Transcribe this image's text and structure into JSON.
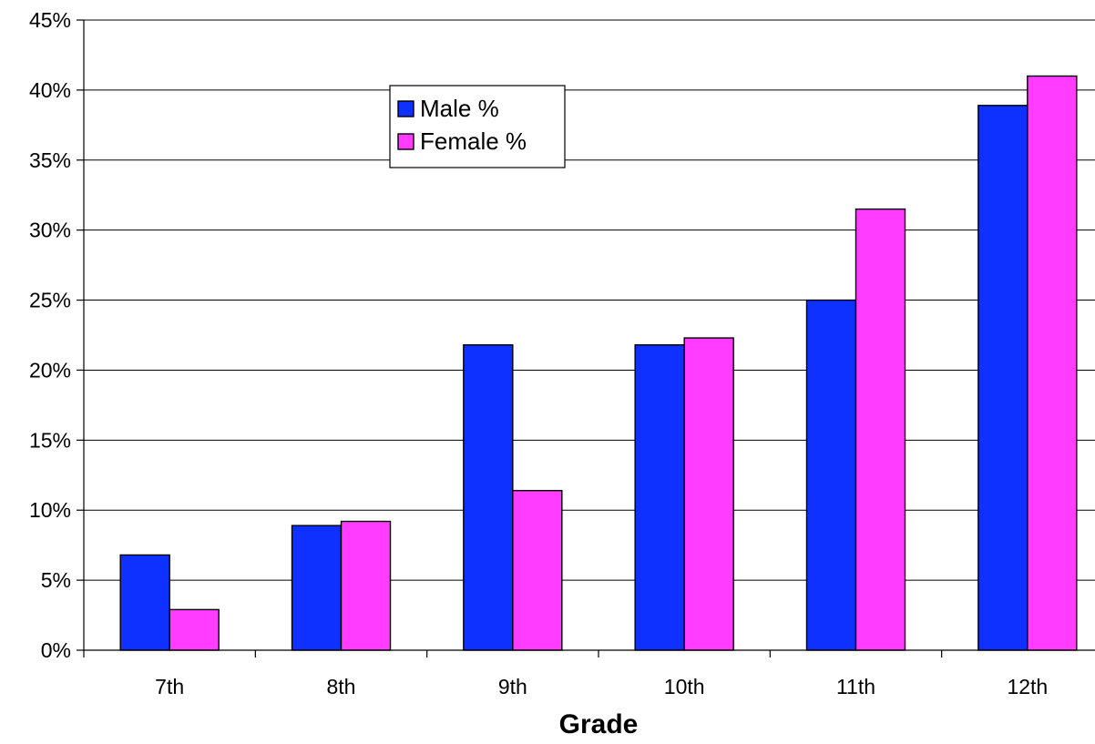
{
  "chart_data": {
    "type": "bar",
    "title": "",
    "xlabel": "Grade",
    "ylabel": "",
    "categories": [
      "7th",
      "8th",
      "9th",
      "10th",
      "11th",
      "12th"
    ],
    "series": [
      {
        "name": "Male %",
        "color": "#0f31ff",
        "values": [
          6.8,
          8.9,
          21.8,
          21.8,
          25.0,
          38.9
        ]
      },
      {
        "name": "Female %",
        "color": "#ff3cff",
        "values": [
          2.9,
          9.2,
          11.4,
          22.3,
          31.5,
          41.0
        ]
      }
    ],
    "ylim": [
      0,
      45
    ],
    "y_ticks": [
      0,
      5,
      10,
      15,
      20,
      25,
      30,
      35,
      40,
      45
    ],
    "y_tick_labels": [
      "0%",
      "5%",
      "10%",
      "15%",
      "20%",
      "25%",
      "30%",
      "35%",
      "40%",
      "45%"
    ],
    "grid": true,
    "legend_position": "top-center"
  }
}
